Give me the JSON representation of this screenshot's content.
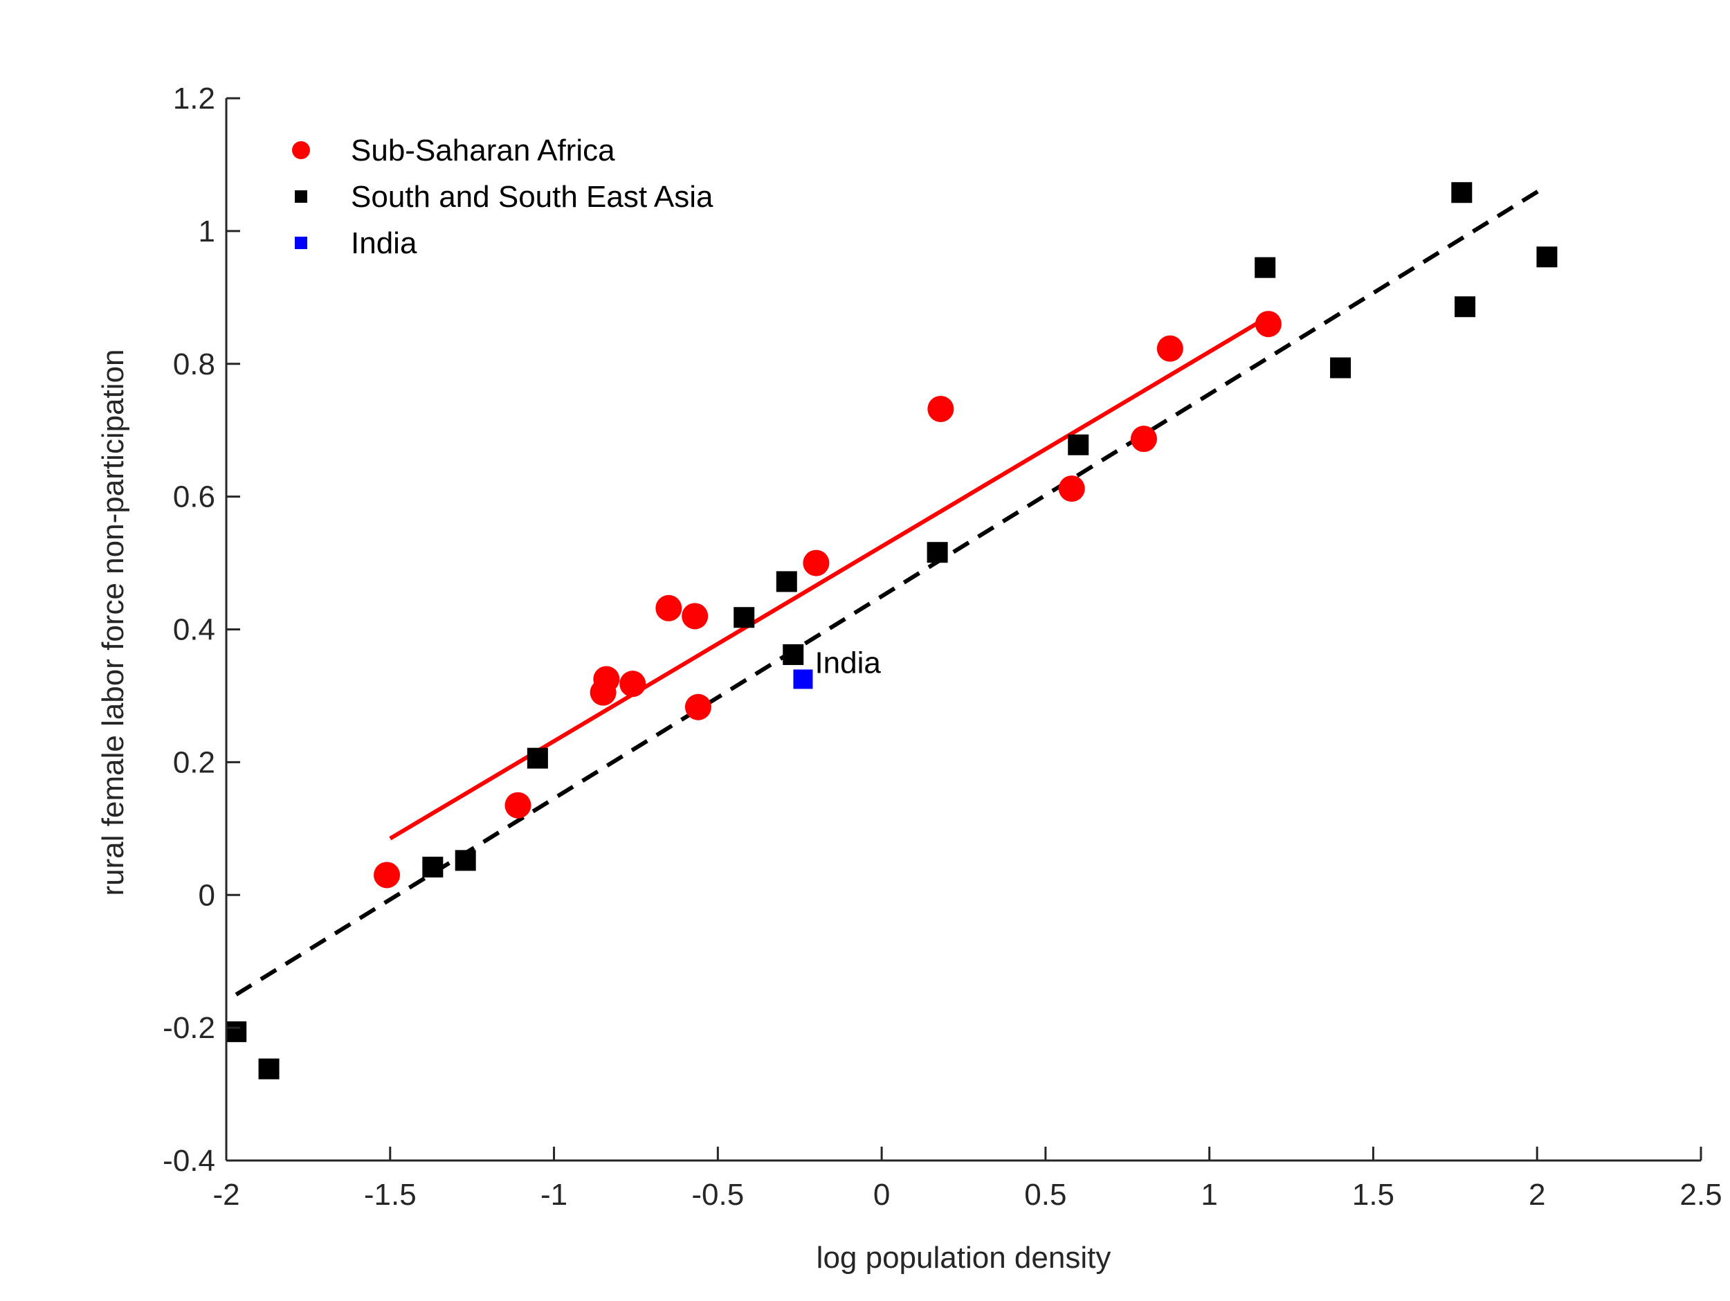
{
  "chart_data": {
    "type": "scatter",
    "title": "",
    "xlabel": "log population density",
    "ylabel": "rural female labor force non-participation",
    "xlim": [
      -2,
      2.5
    ],
    "ylim": [
      -0.4,
      1.2
    ],
    "xticks": [
      -2,
      -1.5,
      -1,
      -0.5,
      0,
      0.5,
      1,
      1.5,
      2,
      2.5
    ],
    "xtick_labels": [
      "-2",
      "-1.5",
      "-1",
      "-0.5",
      "0",
      "0.5",
      "1",
      "1.5",
      "2",
      "2.5"
    ],
    "yticks": [
      -0.4,
      -0.2,
      0,
      0.2,
      0.4,
      0.6,
      0.8,
      1,
      1.2
    ],
    "ytick_labels": [
      "-0.4",
      "-0.2",
      "0",
      "0.2",
      "0.4",
      "0.6",
      "0.8",
      "1",
      "1.2"
    ],
    "grid": false,
    "legend_position": "top-left",
    "series": [
      {
        "name": "Sub-Saharan Africa",
        "marker": "circle",
        "color": "#ff0000",
        "points": [
          [
            -1.51,
            0.03
          ],
          [
            -1.11,
            0.135
          ],
          [
            -0.85,
            0.305
          ],
          [
            -0.84,
            0.325
          ],
          [
            -0.76,
            0.318
          ],
          [
            -0.65,
            0.432
          ],
          [
            -0.57,
            0.42
          ],
          [
            -0.56,
            0.283
          ],
          [
            -0.2,
            0.5
          ],
          [
            0.18,
            0.732
          ],
          [
            0.58,
            0.612
          ],
          [
            0.8,
            0.687
          ],
          [
            0.88,
            0.823
          ],
          [
            1.18,
            0.86
          ]
        ]
      },
      {
        "name": "South and South East Asia",
        "marker": "square",
        "color": "#000000",
        "points": [
          [
            -1.97,
            -0.206
          ],
          [
            -1.87,
            -0.262
          ],
          [
            -1.37,
            0.042
          ],
          [
            -1.27,
            0.052
          ],
          [
            -1.05,
            0.206
          ],
          [
            -0.42,
            0.418
          ],
          [
            -0.29,
            0.472
          ],
          [
            -0.27,
            0.362
          ],
          [
            0.17,
            0.516
          ],
          [
            0.6,
            0.678
          ],
          [
            1.17,
            0.945
          ],
          [
            1.4,
            0.794
          ],
          [
            1.77,
            1.058
          ],
          [
            1.78,
            0.886
          ],
          [
            2.03,
            0.961
          ]
        ]
      },
      {
        "name": "India",
        "marker": "square",
        "color": "#0000ff",
        "points": [
          [
            -0.24,
            0.325
          ]
        ]
      }
    ],
    "fit_lines": [
      {
        "group": "Sub-Saharan Africa",
        "style": "solid",
        "color": "#ff0000",
        "x": [
          -1.5,
          1.17
        ],
        "y": [
          0.085,
          0.868
        ]
      },
      {
        "group": "South and South East Asia",
        "style": "dashed",
        "color": "#000000",
        "x": [
          -1.97,
          2.02
        ],
        "y": [
          -0.15,
          1.065
        ]
      }
    ],
    "annotations": [
      {
        "text": "India",
        "x": -0.24,
        "y": 0.325
      }
    ]
  }
}
